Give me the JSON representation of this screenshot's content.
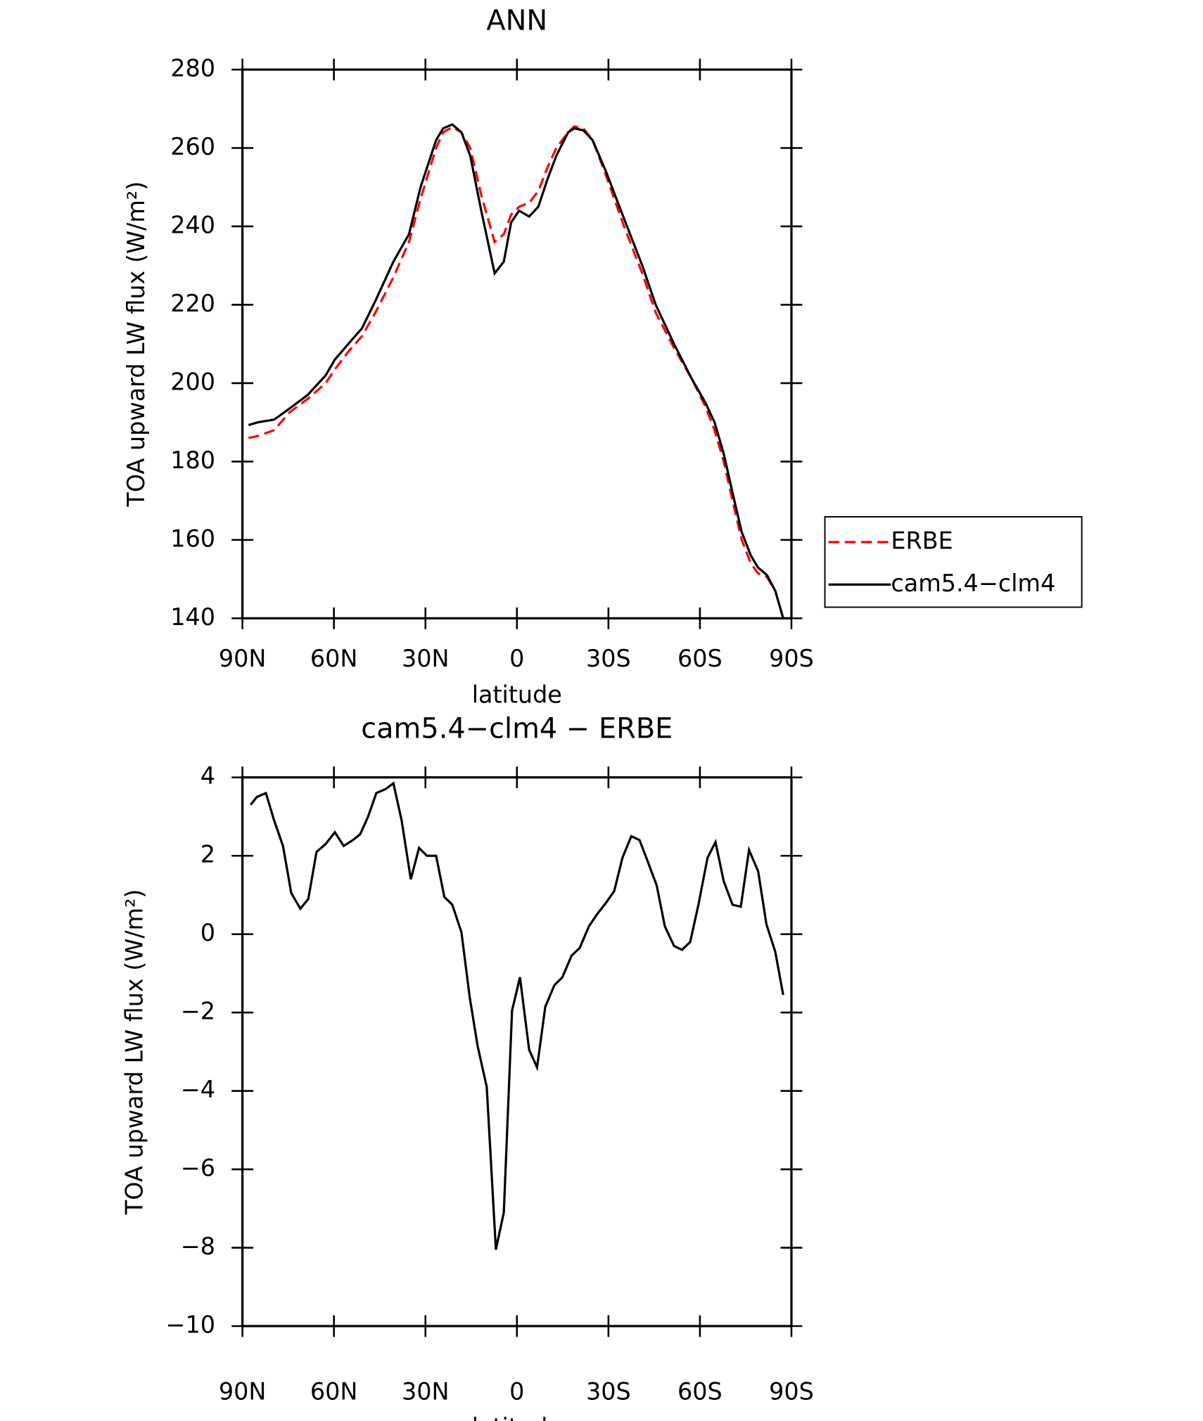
{
  "chart_data": [
    {
      "type": "line",
      "title": "ANN",
      "xlabel": "latitude",
      "ylabel": "TOA upward LW flux (W/m²)",
      "xlim": [
        90,
        -90
      ],
      "xticks": [
        {
          "value": 90,
          "label": "90N"
        },
        {
          "value": 60,
          "label": "60N"
        },
        {
          "value": 30,
          "label": "30N"
        },
        0,
        {
          "value": -30,
          "label": "30S"
        },
        {
          "value": -60,
          "label": "60S"
        },
        {
          "value": -90,
          "label": "90S"
        }
      ],
      "ylim": [
        140,
        280
      ],
      "yticks": [
        140,
        160,
        180,
        200,
        220,
        240,
        260,
        280
      ],
      "legend": "right",
      "x": [
        88,
        85,
        79.6,
        74.6,
        68.6,
        62.7,
        59.7,
        55.3,
        50.8,
        46.4,
        40.5,
        35.4,
        31.6,
        26.5,
        24.2,
        21.2,
        18.2,
        15.3,
        11.7,
        7.3,
        4.3,
        1.9,
        -0.7,
        -4,
        -7,
        -10,
        -12.9,
        -16.8,
        -18.8,
        -21.8,
        -24.8,
        -29.2,
        -35.1,
        -41.1,
        -45.5,
        -51.5,
        -57.4,
        -61.8,
        -64.8,
        -67.8,
        -70.7,
        -73.7,
        -76.7,
        -79,
        -82,
        -84.7,
        -87.3
      ],
      "series": [
        {
          "name": "ERBE",
          "color": "#ff0000",
          "style": "dashed",
          "values": [
            186,
            186.5,
            188,
            192.5,
            196,
            200,
            203.5,
            208,
            212,
            218,
            227,
            236,
            247,
            260,
            264,
            265.3,
            264,
            260,
            248,
            236,
            238,
            243,
            245,
            246,
            249,
            255,
            260,
            264,
            265.5,
            265,
            262,
            253,
            240,
            228,
            218,
            209,
            201,
            194,
            188,
            180,
            170,
            160,
            154,
            151.5,
            150.5,
            147,
            140
          ]
        },
        {
          "name": "cam5.4−clm4",
          "color": "#000000",
          "style": "solid",
          "values": [
            189.3,
            190,
            190.7,
            193.5,
            197,
            202,
            206,
            210,
            214,
            221,
            231,
            238,
            250,
            262,
            265,
            266,
            264,
            258,
            244,
            228,
            231,
            241,
            244,
            242.5,
            245,
            252,
            258,
            264,
            265,
            264.5,
            262,
            254,
            242,
            230,
            220,
            210,
            201,
            195,
            190,
            182,
            172,
            162,
            156,
            153,
            151,
            147,
            140
          ]
        }
      ]
    },
    {
      "type": "line",
      "title": "cam5.4−clm4 − ERBE",
      "xlabel": "latitude",
      "ylabel": "TOA upward LW flux (W/m²)",
      "xlim": [
        90,
        -90
      ],
      "xticks": [
        {
          "value": 90,
          "label": "90N"
        },
        {
          "value": 60,
          "label": "60N"
        },
        {
          "value": 30,
          "label": "30N"
        },
        0,
        {
          "value": -30,
          "label": "30S"
        },
        {
          "value": -60,
          "label": "60S"
        },
        {
          "value": -90,
          "label": "90S"
        }
      ],
      "ylim": [
        -10,
        4
      ],
      "yticks": [
        {
          "value": -10,
          "label": "−10"
        },
        {
          "value": -8,
          "label": "−8"
        },
        {
          "value": -6,
          "label": "−6"
        },
        {
          "value": -4,
          "label": "−4"
        },
        {
          "value": -2,
          "label": "−2"
        },
        0,
        2,
        4
      ],
      "x": [
        87.3,
        85.3,
        82.3,
        79.6,
        76.7,
        74.0,
        71.0,
        68.4,
        65.7,
        62.7,
        59.7,
        56.8,
        53.8,
        51.4,
        48.8,
        46.1,
        43.1,
        40.5,
        37.8,
        34.8,
        32.1,
        29.5,
        26.5,
        23.8,
        21.2,
        18.2,
        15.5,
        12.9,
        9.9,
        6.9,
        4.3,
        1.6,
        -1.0,
        -4.0,
        -6.6,
        -9.3,
        -12.3,
        -14.9,
        -17.9,
        -20.6,
        -23.6,
        -26.2,
        -29.2,
        -31.9,
        -34.6,
        -37.5,
        -40.2,
        -42.9,
        -45.8,
        -48.5,
        -51.5,
        -54.1,
        -56.8,
        -59.5,
        -62.5,
        -65.1,
        -67.8,
        -70.7,
        -73.4,
        -76.1,
        -79.1,
        -81.8,
        -84.7,
        -87.3
      ],
      "series": [
        {
          "color": "#000000",
          "style": "solid",
          "values": [
            3.3,
            3.5,
            3.6,
            2.9,
            2.25,
            1.05,
            0.65,
            0.9,
            2.1,
            2.3,
            2.6,
            2.25,
            2.4,
            2.55,
            3.0,
            3.6,
            3.7,
            3.85,
            2.9,
            1.4,
            2.2,
            2.0,
            2.0,
            0.95,
            0.75,
            0.05,
            -1.6,
            -2.85,
            -3.9,
            -8.05,
            -7.1,
            -1.95,
            -1.1,
            -2.95,
            -3.4,
            -1.85,
            -1.3,
            -1.1,
            -0.55,
            -0.35,
            0.2,
            0.5,
            0.8,
            1.1,
            1.95,
            2.5,
            2.4,
            1.85,
            1.25,
            0.2,
            -0.3,
            -0.4,
            -0.2,
            0.75,
            1.95,
            2.35,
            1.35,
            0.75,
            0.7,
            2.15,
            1.6,
            0.25,
            -0.45,
            -1.55
          ]
        }
      ]
    }
  ]
}
